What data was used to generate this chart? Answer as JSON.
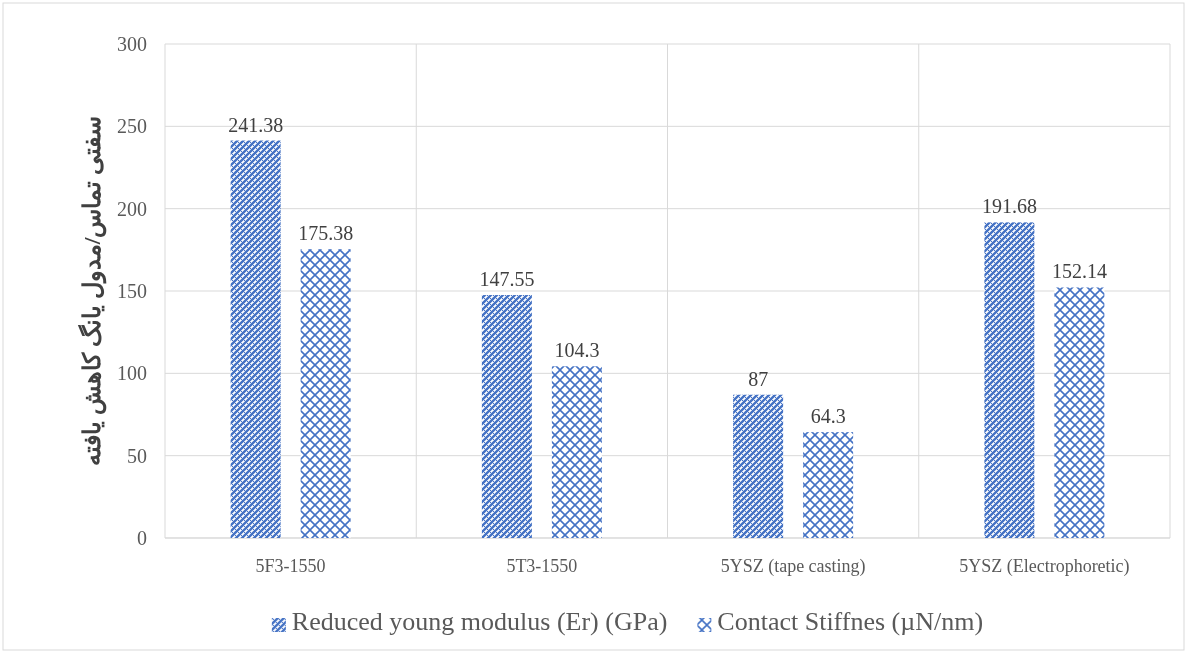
{
  "chart_data": {
    "type": "bar",
    "ylabel": "سفتی تماس/مدول یانگ کاهش یافته",
    "categories": [
      "5F3-1550",
      "5T3-1550",
      "5YSZ (tape casting)",
      "5YSZ (Electrophoretic)"
    ],
    "series": [
      {
        "name": "Reduced young modulus (Er) (GPa)",
        "color": "#4472c4",
        "values": [
          241.38,
          147.55,
          87,
          191.68
        ]
      },
      {
        "name": "Contact Stiffnes (µN/nm)",
        "color": "#4472c4",
        "values": [
          175.38,
          104.3,
          64.3,
          152.14
        ]
      }
    ],
    "ylim": [
      0,
      300
    ],
    "yticks": [
      0,
      50,
      100,
      150,
      200,
      250,
      300
    ],
    "grid": true,
    "legend": "bottom",
    "data_labels": true
  }
}
